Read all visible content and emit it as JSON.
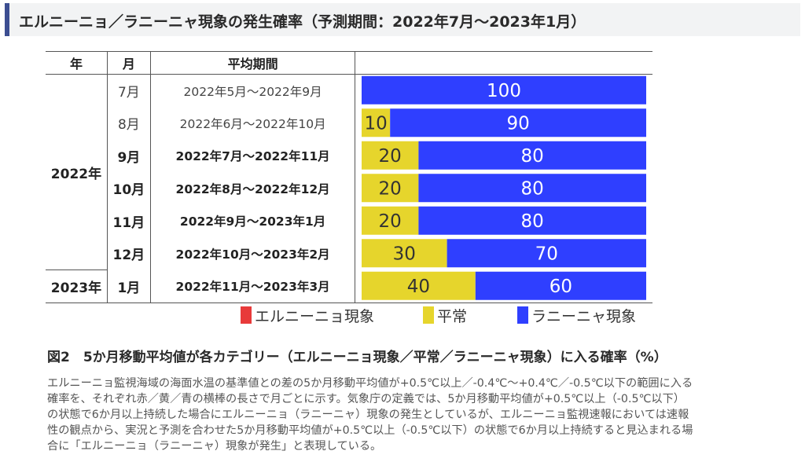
{
  "header": {
    "title": "エルニーニョ／ラニーニャ現象の発生確率（予測期間：2022年7月～2023年1月）"
  },
  "table": {
    "col_headers": [
      "年",
      "月",
      "平均期間"
    ],
    "rows": [
      {
        "year": "",
        "month": "7月",
        "period": "2022年5月～2022年9月",
        "bold": false
      },
      {
        "year": "",
        "month": "8月",
        "period": "2022年6月～2022年10月",
        "bold": false
      },
      {
        "year": "",
        "month": "9月",
        "period": "2022年7月～2022年11月",
        "bold": true
      },
      {
        "year": "",
        "month": "10月",
        "period": "2022年8月～2022年12月",
        "bold": true
      },
      {
        "year": "",
        "month": "11月",
        "period": "2022年9月～2023年1月",
        "bold": true
      },
      {
        "year": "",
        "month": "12月",
        "period": "2022年10月～2023年2月",
        "bold": true
      },
      {
        "year": "2023年",
        "month": "1月",
        "period": "2022年11月～2023年3月",
        "bold": true
      }
    ],
    "year_2022": "2022年"
  },
  "chart_data": {
    "type": "bar",
    "stacked": true,
    "orientation": "horizontal",
    "categories": [
      "7月",
      "8月",
      "9月",
      "10月",
      "11月",
      "12月",
      "1月"
    ],
    "series": [
      {
        "name": "エルニーニョ現象",
        "color": "#e83a3a",
        "values": [
          0,
          0,
          0,
          0,
          0,
          0,
          0
        ]
      },
      {
        "name": "平常",
        "color": "#e6d52c",
        "values": [
          0,
          10,
          20,
          20,
          20,
          30,
          40
        ]
      },
      {
        "name": "ラニーニャ現象",
        "color": "#2f3fff",
        "values": [
          100,
          90,
          80,
          80,
          80,
          70,
          60
        ]
      }
    ],
    "xlim": [
      0,
      100
    ],
    "legend": "bottom"
  },
  "caption": {
    "title": "図2　5か月移動平均値が各カテゴリー（エルニーニョ現象／平常／ラニーニャ現象）に入る確率（%）",
    "lines": [
      "エルニーニョ監視海域の海面水温の基準値との差の5か月移動平均値が+0.5℃以上／-0.4℃～+0.4℃／-0.5℃以下の範囲に入る",
      "確率を、それぞれ赤／黄／青の横棒の長さで月ごとに示す。気象庁の定義では、5か月移動平均値が+0.5℃以上（-0.5℃以下）",
      "の状態で6か月以上持続した場合にエルニーニョ（ラニーニャ）現象の発生としているが、エルニーニョ監視速報においては速報",
      "性の観点から、実況と予測を合わせた5か月移動平均値が+0.5℃以上（-0.5℃以下）の状態で6か月以上持続すると見込まれる場",
      "合に「エルニーニョ（ラニーニャ）現象が発生」と表現している。"
    ]
  }
}
